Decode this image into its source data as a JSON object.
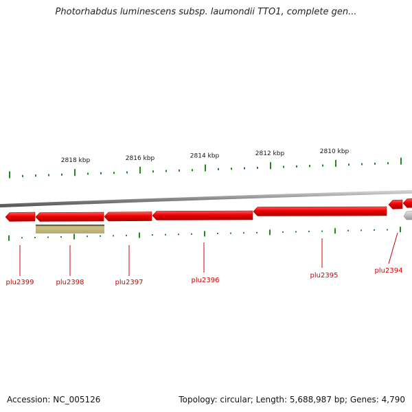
{
  "title": "Photorhabdus luminescens subsp. laumondii TTO1, complete gen...",
  "footer": {
    "accession": "Accession: NC_005126",
    "stats": "Topology: circular; Length: 5,688,987 bp; Genes: 4,790"
  },
  "colors": {
    "gene": "#ee0000",
    "gene_dark": "#b00000",
    "gene_other": "#bdbdbd",
    "feature_band": "#b5a96b",
    "backbone": "#8a8a8a",
    "tick": "#1a8a1a",
    "label": "#cc0000"
  },
  "scale": {
    "unit": "kbp",
    "labels": [
      "2818 kbp",
      "2816 kbp",
      "2814 kbp",
      "2812 kbp",
      "2810 kbp"
    ]
  },
  "genes": [
    {
      "name": "plu2399",
      "strand": "-"
    },
    {
      "name": "plu2398",
      "strand": "-"
    },
    {
      "name": "plu2397",
      "strand": "-"
    },
    {
      "name": "plu2396",
      "strand": "-"
    },
    {
      "name": "plu2395",
      "strand": "-"
    },
    {
      "name": "plu2394",
      "strand": "-"
    }
  ]
}
